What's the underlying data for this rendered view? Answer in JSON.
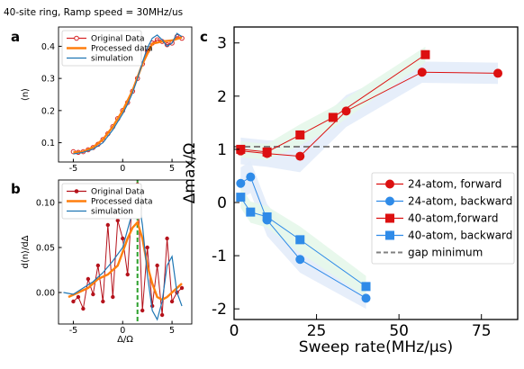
{
  "header": {
    "title": "40-site ring, Ramp speed = 30MHz/us"
  },
  "panels": {
    "a": "a",
    "b": "b",
    "c": "c"
  },
  "chart_data": [
    {
      "id": "a",
      "type": "line",
      "xlabel": "Δ/Ω",
      "ylabel": "⟨n⟩",
      "xlim": [
        -6.5,
        7
      ],
      "ylim": [
        0.04,
        0.46
      ],
      "xticks": [
        -5,
        0,
        5
      ],
      "yticks": [
        0.1,
        0.2,
        0.3,
        0.4
      ],
      "legend_position": "top-left",
      "series": [
        {
          "name": "Original Data",
          "style": "open-circle",
          "color": "#d62728",
          "x": [
            -5.0,
            -4.5,
            -4.0,
            -3.5,
            -3.0,
            -2.5,
            -2.0,
            -1.5,
            -1.0,
            -0.5,
            0.0,
            0.5,
            1.0,
            1.5,
            2.0,
            2.5,
            3.0,
            3.5,
            4.0,
            4.5,
            5.0,
            5.5,
            6.0
          ],
          "y": [
            0.072,
            0.07,
            0.072,
            0.078,
            0.085,
            0.095,
            0.11,
            0.128,
            0.15,
            0.175,
            0.2,
            0.225,
            0.26,
            0.3,
            0.345,
            0.385,
            0.41,
            0.42,
            0.415,
            0.405,
            0.41,
            0.43,
            0.425
          ]
        },
        {
          "name": "Processed data",
          "style": "thick-line",
          "color": "#ff7f0e",
          "x": [
            -5.0,
            -4.0,
            -3.0,
            -2.0,
            -1.0,
            0.0,
            1.0,
            2.0,
            3.0,
            4.0,
            5.0,
            6.0
          ],
          "y": [
            0.07,
            0.072,
            0.086,
            0.11,
            0.15,
            0.2,
            0.262,
            0.345,
            0.408,
            0.415,
            0.418,
            0.428
          ]
        },
        {
          "name": "simulation",
          "style": "line",
          "color": "#1f77b4",
          "x": [
            -5.0,
            -4.0,
            -3.0,
            -2.0,
            -1.0,
            0.0,
            0.5,
            1.0,
            1.5,
            2.0,
            2.5,
            3.0,
            3.5,
            4.0,
            4.5,
            5.0,
            5.5,
            6.0
          ],
          "y": [
            0.065,
            0.07,
            0.08,
            0.1,
            0.14,
            0.19,
            0.22,
            0.255,
            0.3,
            0.35,
            0.395,
            0.425,
            0.435,
            0.42,
            0.4,
            0.41,
            0.44,
            0.43
          ]
        }
      ]
    },
    {
      "id": "b",
      "type": "line",
      "xlabel": "Δ/Ω",
      "ylabel": "d⟨n⟩/dΔ",
      "xlim": [
        -6.5,
        7
      ],
      "ylim": [
        -0.035,
        0.125
      ],
      "xticks": [
        -5,
        0,
        5
      ],
      "yticks": [
        0.0,
        0.05,
        0.1
      ],
      "ytick_labels": [
        "0.00",
        "0.05",
        "0.10"
      ],
      "vline": {
        "x": 1.5,
        "color": "#2ca02c"
      },
      "legend_position": "top-left",
      "series": [
        {
          "name": "Original Data",
          "style": "filled-circle",
          "color": "#b5121b",
          "x": [
            -5.0,
            -4.5,
            -4.0,
            -3.5,
            -3.0,
            -2.5,
            -2.0,
            -1.5,
            -1.0,
            -0.5,
            0.0,
            0.5,
            1.0,
            1.5,
            2.0,
            2.5,
            3.0,
            3.5,
            4.0,
            4.5,
            5.0,
            5.5,
            6.0
          ],
          "y": [
            -0.01,
            -0.005,
            -0.018,
            0.015,
            -0.002,
            0.03,
            -0.01,
            0.075,
            -0.005,
            0.08,
            0.06,
            0.02,
            0.11,
            0.12,
            -0.02,
            0.05,
            -0.015,
            0.03,
            -0.025,
            0.06,
            -0.01,
            0.0,
            0.005
          ]
        },
        {
          "name": "Processed data",
          "style": "thick-line",
          "color": "#ff7f0e",
          "x": [
            -5.5,
            -4.5,
            -3.5,
            -2.5,
            -1.5,
            -0.5,
            0.0,
            0.5,
            1.0,
            1.5,
            2.0,
            2.5,
            3.0,
            3.5,
            4.0,
            4.5,
            5.0,
            5.5,
            6.0
          ],
          "y": [
            -0.005,
            0.0,
            0.005,
            0.015,
            0.02,
            0.03,
            0.045,
            0.06,
            0.072,
            0.078,
            0.06,
            0.03,
            0.01,
            -0.005,
            -0.008,
            -0.005,
            0.0,
            0.005,
            0.01
          ]
        },
        {
          "name": "simulation",
          "style": "line",
          "color": "#1f77b4",
          "x": [
            -6.0,
            -5.0,
            -4.0,
            -3.0,
            -2.0,
            -1.0,
            0.0,
            0.5,
            1.0,
            1.5,
            2.0,
            2.5,
            3.0,
            3.5,
            4.0,
            4.5,
            5.0,
            5.5,
            6.0
          ],
          "y": [
            0.0,
            -0.002,
            0.005,
            0.012,
            0.022,
            0.035,
            0.05,
            0.07,
            0.09,
            0.11,
            0.075,
            0.02,
            -0.02,
            -0.03,
            -0.01,
            0.03,
            0.04,
            0.0,
            -0.015
          ]
        }
      ]
    },
    {
      "id": "c",
      "type": "line",
      "xlabel": "Sweep rate(MHz/μs)",
      "ylabel": "Δmax/Ω",
      "xlim": [
        0,
        86
      ],
      "ylim": [
        -2.2,
        3.3
      ],
      "xticks": [
        0,
        25,
        50,
        75
      ],
      "yticks": [
        -2,
        -1,
        0,
        1,
        2,
        3
      ],
      "hline": {
        "y": 1.05,
        "color": "#808080"
      },
      "legend_position": "center-right",
      "series": [
        {
          "name": "24-atom, forward",
          "marker": "circle",
          "color": "#dc1010",
          "x": [
            2,
            10,
            20,
            34,
            57,
            80
          ],
          "y": [
            0.97,
            0.92,
            0.87,
            1.72,
            2.45,
            2.43
          ],
          "band": [
            0.25,
            0.25,
            0.3,
            0.3,
            0.2,
            0.2
          ],
          "band_color": "#e3ecf9"
        },
        {
          "name": "24-atom, backward",
          "marker": "circle",
          "color": "#2f8be8",
          "x": [
            2,
            5,
            10,
            20,
            40
          ],
          "y": [
            0.36,
            0.48,
            -0.33,
            -1.07,
            -1.8
          ],
          "band": [
            0.3,
            0.3,
            0.3,
            0.25,
            0.2
          ],
          "band_color": "#e3ecf9"
        },
        {
          "name": "40-atom,forward",
          "marker": "square",
          "color": "#dc1010",
          "x": [
            2,
            10,
            20,
            30,
            58
          ],
          "y": [
            1.0,
            0.95,
            1.27,
            1.6,
            2.78
          ],
          "band": [
            0.15,
            0.15,
            0.2,
            0.2,
            0.15
          ],
          "band_color": "#e6f7ea"
        },
        {
          "name": "40-atom, backward",
          "marker": "square",
          "color": "#2f8be8",
          "x": [
            2,
            5,
            10,
            20,
            40
          ],
          "y": [
            0.1,
            -0.18,
            -0.27,
            -0.7,
            -1.58
          ],
          "band": [
            0.2,
            0.2,
            0.2,
            0.25,
            0.2
          ],
          "band_color": "#e6f7ea"
        }
      ],
      "legend_extra": {
        "name": "gap minimum",
        "style": "dashed",
        "color": "#808080"
      }
    }
  ]
}
